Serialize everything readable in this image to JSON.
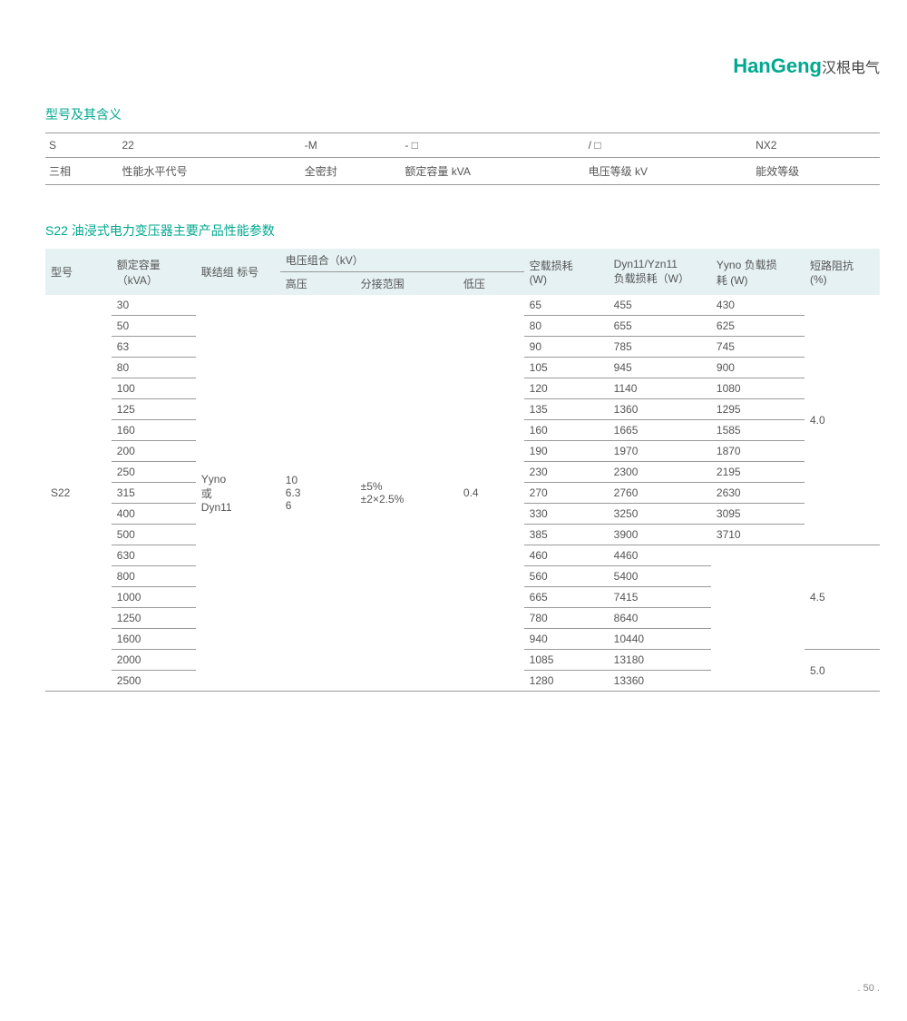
{
  "logo": {
    "en": "HanGeng",
    "cn": "汉根电气"
  },
  "section1": {
    "title": "型号及其含义",
    "row1": [
      "S",
      "22",
      "-M",
      "- □",
      "/ □",
      "NX2"
    ],
    "row2": [
      "三相",
      "性能水平代号",
      "全密封",
      "额定容量 kVA",
      "电压等级 kV",
      "能效等级"
    ]
  },
  "section2": {
    "title": "S22 油浸式电力变压器主要产品性能参数",
    "headers": {
      "model": "型号",
      "capacity": "额定容量\n（kVA）",
      "group": "联结组 标号",
      "voltage_combo": "电压组合（kV）",
      "hv": "高压",
      "tap": "分接范围",
      "lv": "低压",
      "noload": "空载损耗\n(W)",
      "dyn": "Dyn11/Yzn11\n负载损耗（W）",
      "yyno": "Yyno 负载损\n耗 (W)",
      "impedance": "短路阻抗\n(%)"
    },
    "model": "S22",
    "group": "Yyno\n或\nDyn11",
    "hv": "10\n6.3\n6",
    "tap": "±5%\n±2×2.5%",
    "lv": "0.4",
    "rows": [
      {
        "cap": "30",
        "nl": "65",
        "dyn": "455",
        "yy": "430"
      },
      {
        "cap": "50",
        "nl": "80",
        "dyn": "655",
        "yy": "625"
      },
      {
        "cap": "63",
        "nl": "90",
        "dyn": "785",
        "yy": "745"
      },
      {
        "cap": "80",
        "nl": "105",
        "dyn": "945",
        "yy": "900"
      },
      {
        "cap": "100",
        "nl": "120",
        "dyn": "1140",
        "yy": "1080"
      },
      {
        "cap": "125",
        "nl": "135",
        "dyn": "1360",
        "yy": "1295"
      },
      {
        "cap": "160",
        "nl": "160",
        "dyn": "1665",
        "yy": "1585"
      },
      {
        "cap": "200",
        "nl": "190",
        "dyn": "1970",
        "yy": "1870"
      },
      {
        "cap": "250",
        "nl": "230",
        "dyn": "2300",
        "yy": "2195"
      },
      {
        "cap": "315",
        "nl": "270",
        "dyn": "2760",
        "yy": "2630"
      },
      {
        "cap": "400",
        "nl": "330",
        "dyn": "3250",
        "yy": "3095"
      },
      {
        "cap": "500",
        "nl": "385",
        "dyn": "3900",
        "yy": "3710"
      },
      {
        "cap": "630",
        "nl": "460",
        "dyn": "4460",
        "yy": ""
      },
      {
        "cap": "800",
        "nl": "560",
        "dyn": "5400",
        "yy": ""
      },
      {
        "cap": "1000",
        "nl": "665",
        "dyn": "7415",
        "yy": ""
      },
      {
        "cap": "1250",
        "nl": "780",
        "dyn": "8640",
        "yy": ""
      },
      {
        "cap": "1600",
        "nl": "940",
        "dyn": "10440",
        "yy": ""
      },
      {
        "cap": "2000",
        "nl": "1085",
        "dyn": "13180",
        "yy": ""
      },
      {
        "cap": "2500",
        "nl": "1280",
        "dyn": "13360",
        "yy": ""
      }
    ],
    "impedance": [
      {
        "span": 7,
        "val": "4.0"
      },
      {
        "span": 5,
        "val": ""
      },
      {
        "span": 5,
        "val": "4.5"
      },
      {
        "span": 2,
        "val": "5.0"
      }
    ]
  },
  "page_num": ". 50 .",
  "colors": {
    "accent": "#00a88f",
    "header_bg": "#e6f1f4",
    "text": "#555555",
    "border": "#999999"
  }
}
